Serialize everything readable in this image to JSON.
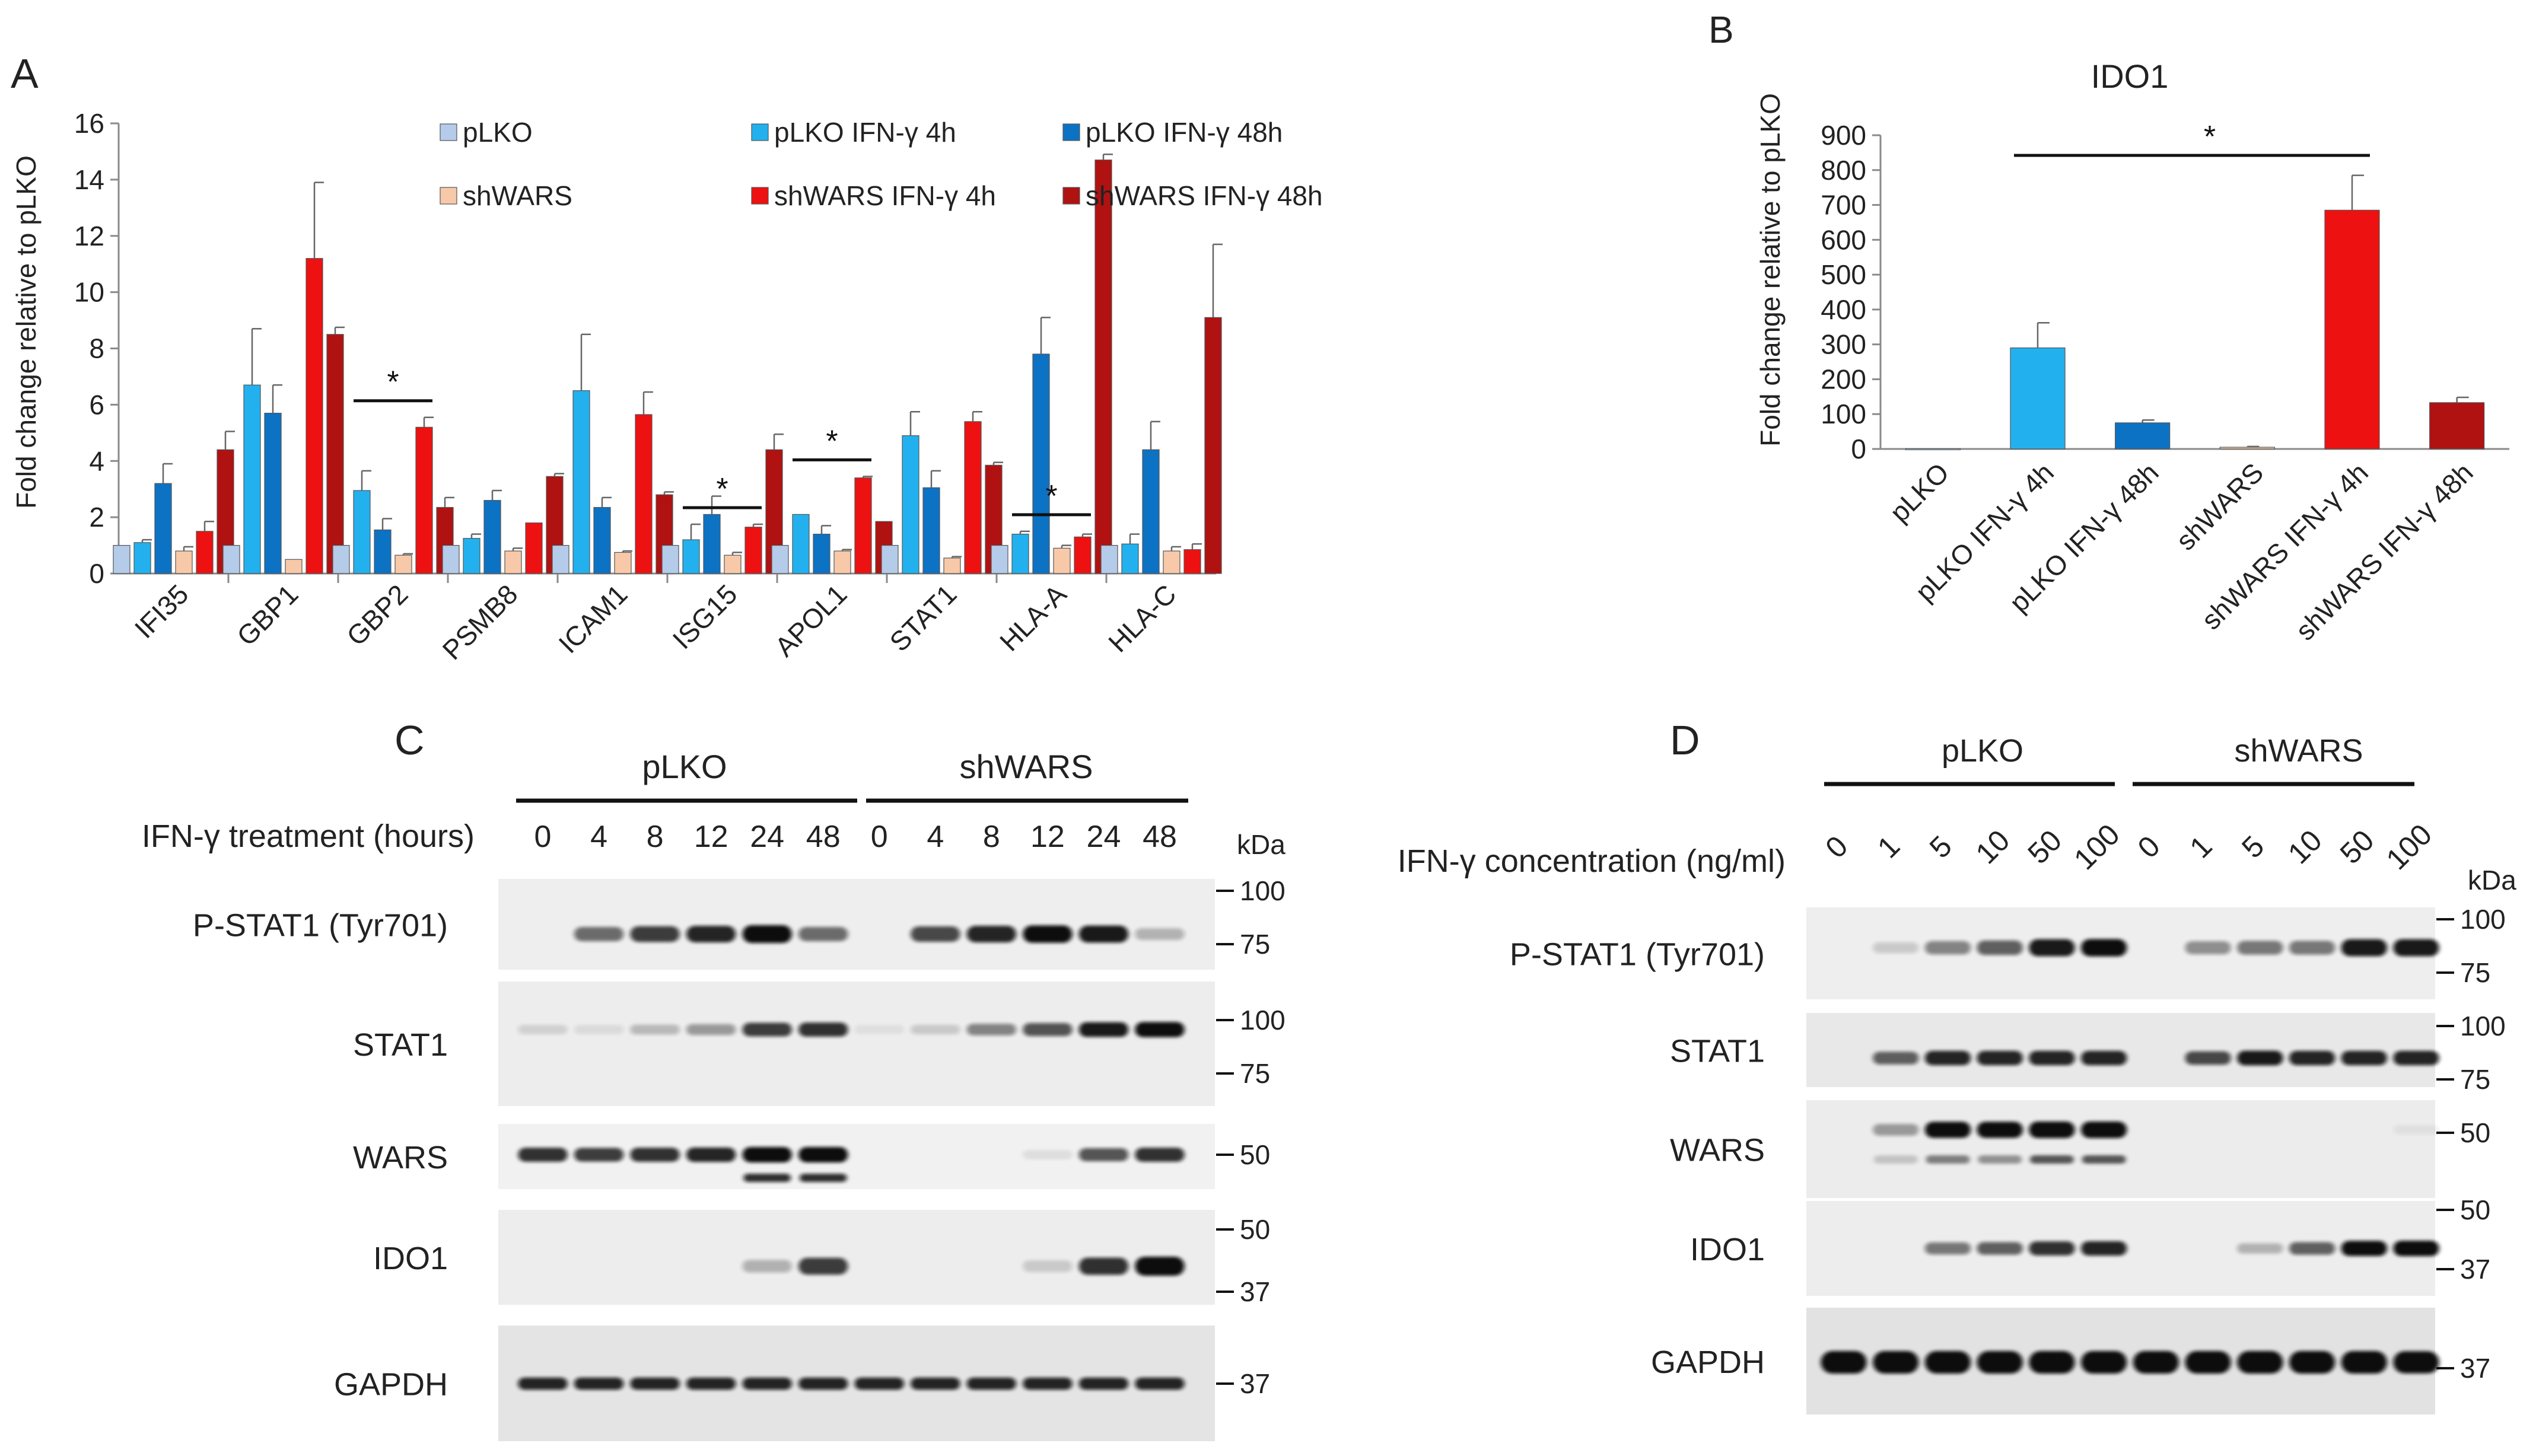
{
  "panel_a": {
    "letter": "A",
    "ylabel": "Fold change relative to pLKO",
    "significance": "*"
  },
  "panel_b": {
    "letter": "B",
    "title": "IDO1",
    "ylabel": "Fold change relative to pLKO",
    "significance": "*"
  },
  "chart_data": [
    {
      "type": "bar",
      "panel": "A",
      "title": "",
      "xlabel": "",
      "ylabel": "Fold change relative to pLKO",
      "ylim": [
        0,
        16
      ],
      "yticks": [
        0,
        2,
        4,
        6,
        8,
        10,
        12,
        14,
        16
      ],
      "categories": [
        "IFI35",
        "GBP1",
        "GBP2",
        "PSMB8",
        "ICAM1",
        "ISG15",
        "APOL1",
        "STAT1",
        "HLA-A",
        "HLA-C"
      ],
      "legend_position": "top",
      "series": [
        {
          "name": "pLKO",
          "color": "#b4cbe9",
          "values": [
            1,
            1,
            1,
            1,
            1,
            1,
            1,
            1,
            1,
            1
          ],
          "errors": [
            0,
            0,
            0,
            0,
            0,
            0,
            0,
            0,
            0,
            0
          ]
        },
        {
          "name": "pLKO IFN-γ 4h",
          "color": "#22b1ee",
          "values": [
            1.1,
            6.7,
            2.95,
            1.25,
            6.5,
            1.2,
            2.1,
            4.9,
            1.4,
            1.05
          ],
          "errors": [
            0.1,
            2.0,
            0.7,
            0.15,
            2.0,
            0.55,
            0,
            0.85,
            0.1,
            0.35
          ]
        },
        {
          "name": "pLKO IFN-γ 48h",
          "color": "#0c72c4",
          "values": [
            3.2,
            5.7,
            1.55,
            2.6,
            2.35,
            2.1,
            1.4,
            3.05,
            7.8,
            4.4
          ],
          "errors": [
            0.7,
            1.0,
            0.4,
            0.35,
            0.35,
            0.65,
            0.3,
            0.6,
            1.3,
            1.0
          ]
        },
        {
          "name": "shWARS",
          "color": "#f8c9a8",
          "values": [
            0.8,
            0.5,
            0.65,
            0.8,
            0.75,
            0.65,
            0.8,
            0.55,
            0.9,
            0.8
          ],
          "errors": [
            0.15,
            0,
            0.05,
            0.1,
            0.05,
            0.1,
            0.05,
            0.05,
            0.1,
            0.15
          ]
        },
        {
          "name": "shWARS IFN-γ 4h",
          "color": "#ee1111",
          "values": [
            1.5,
            11.2,
            5.2,
            1.8,
            5.65,
            1.65,
            3.4,
            5.4,
            1.3,
            0.85
          ],
          "errors": [
            0.35,
            2.7,
            0.35,
            0,
            0.8,
            0.1,
            0.05,
            0.35,
            0.1,
            0.2
          ]
        },
        {
          "name": "shWARS IFN-γ 48h",
          "color": "#b01212",
          "values": [
            4.4,
            8.5,
            2.35,
            3.45,
            2.8,
            4.4,
            1.85,
            3.85,
            14.7,
            9.1
          ],
          "errors": [
            0.65,
            0.25,
            0.35,
            0.1,
            0.1,
            0.55,
            0,
            0.1,
            0.2,
            2.6
          ]
        }
      ],
      "significance": [
        {
          "category": "GBP2",
          "label": "*"
        },
        {
          "category": "ISG15",
          "label": "*"
        },
        {
          "category": "APOL1",
          "label": "*"
        },
        {
          "category": "HLA-A",
          "label": "*"
        }
      ]
    },
    {
      "type": "bar",
      "panel": "B",
      "title": "IDO1",
      "xlabel": "",
      "ylabel": "Fold change relative to pLKO",
      "ylim": [
        0,
        900
      ],
      "yticks": [
        0,
        100,
        200,
        300,
        400,
        500,
        600,
        700,
        800,
        900
      ],
      "categories": [
        "pLKO",
        "pLKO IFN-γ 4h",
        "pLKO IFN-γ 48h",
        "shWARS",
        "shWARS IFN-γ 4h",
        "shWARS IFN-γ 48h"
      ],
      "values": [
        1,
        290,
        75,
        5,
        685,
        133
      ],
      "errors": [
        0,
        72,
        8,
        2,
        100,
        15
      ],
      "colors": [
        "#b4cbe9",
        "#22b1ee",
        "#0c72c4",
        "#f8c9a8",
        "#ee1111",
        "#b01212"
      ],
      "significance": [
        {
          "from": "pLKO IFN-γ 4h",
          "to": "shWARS IFN-γ 4h",
          "label": "*"
        }
      ]
    }
  ],
  "panel_c": {
    "letter": "C",
    "group_left": "pLKO",
    "group_right": "shWARS",
    "axis_label": "IFN-γ treatment (hours)",
    "lanes": [
      "0",
      "4",
      "8",
      "12",
      "24",
      "48",
      "0",
      "4",
      "8",
      "12",
      "24",
      "48"
    ],
    "kda_label": "kDa",
    "blots": [
      {
        "label": "P-STAT1 (Tyr701)",
        "markers": [
          "100",
          "75"
        ],
        "bands": [
          0,
          0.55,
          0.75,
          0.85,
          1.0,
          0.55,
          0,
          0.7,
          0.85,
          0.95,
          0.9,
          0.25
        ]
      },
      {
        "label": "STAT1",
        "markers": [
          "100",
          "75"
        ],
        "bands": [
          0.12,
          0.08,
          0.22,
          0.35,
          0.75,
          0.8,
          0.06,
          0.15,
          0.45,
          0.65,
          0.9,
          0.95
        ]
      },
      {
        "label": "WARS",
        "markers": [
          "50"
        ],
        "bands": [
          0.8,
          0.75,
          0.8,
          0.85,
          1.0,
          1.0,
          0,
          0,
          0,
          0.08,
          0.65,
          0.8
        ]
      },
      {
        "label": "IDO1",
        "markers": [
          "50",
          "37"
        ],
        "bands": [
          0,
          0,
          0,
          0,
          0.25,
          0.75,
          0,
          0,
          0,
          0.15,
          0.8,
          1.0
        ]
      },
      {
        "label": "GAPDH",
        "markers": [
          "37"
        ],
        "bands": [
          0.85,
          0.85,
          0.85,
          0.85,
          0.85,
          0.85,
          0.85,
          0.85,
          0.85,
          0.85,
          0.85,
          0.85
        ]
      }
    ]
  },
  "panel_d": {
    "letter": "D",
    "group_left": "pLKO",
    "group_right": "shWARS",
    "axis_label": "IFN-γ concentration (ng/ml)",
    "lanes": [
      "0",
      "1",
      "5",
      "10",
      "50",
      "100",
      "0",
      "1",
      "5",
      "10",
      "50",
      "100"
    ],
    "kda_label": "kDa",
    "blots": [
      {
        "label": "P-STAT1 (Tyr701)",
        "markers": [
          "100",
          "75"
        ],
        "bands": [
          0,
          0.15,
          0.45,
          0.6,
          0.9,
          0.95,
          0,
          0.4,
          0.5,
          0.5,
          0.9,
          0.9
        ]
      },
      {
        "label": "STAT1",
        "markers": [
          "100",
          "75"
        ],
        "bands": [
          0,
          0.6,
          0.85,
          0.85,
          0.85,
          0.85,
          0,
          0.7,
          0.9,
          0.85,
          0.85,
          0.85
        ]
      },
      {
        "label": "WARS",
        "markers": [
          "50"
        ],
        "bands": [
          0,
          0.35,
          0.95,
          0.95,
          1.0,
          1.0,
          0,
          0,
          0,
          0,
          0,
          0.05
        ]
      },
      {
        "label": "IDO1",
        "markers": [
          "50",
          "37"
        ],
        "bands": [
          0,
          0,
          0.5,
          0.6,
          0.8,
          0.85,
          0,
          0,
          0.25,
          0.6,
          0.95,
          1.0
        ]
      },
      {
        "label": "GAPDH",
        "markers": [
          "37"
        ],
        "bands": [
          1,
          1,
          1,
          1,
          1,
          1,
          1,
          1,
          1,
          1,
          1,
          0.95
        ]
      }
    ]
  }
}
